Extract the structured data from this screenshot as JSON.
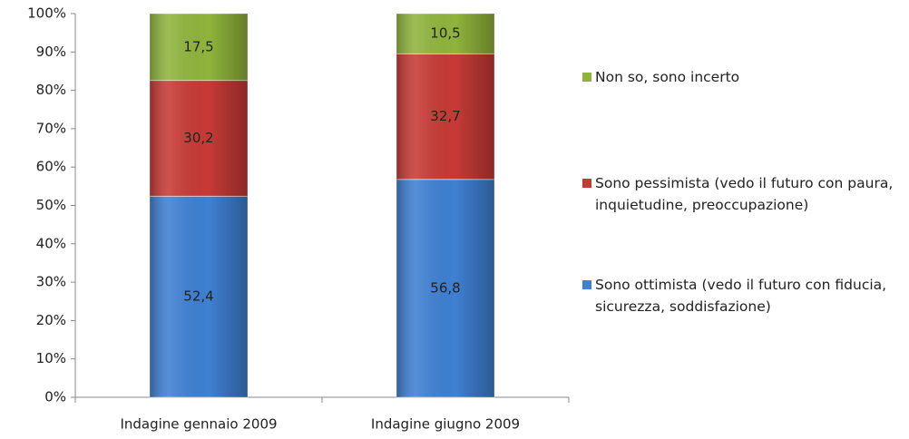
{
  "chart_data": {
    "type": "stacked_bar",
    "categories": [
      "Indagine gennaio 2009",
      "Indagine giugno 2009"
    ],
    "series": [
      {
        "name": "Sono ottimista (vedo il futuro con fiducia, sicurezza, soddisfazione)",
        "color": "#3f80d2",
        "values": [
          52.4,
          56.8
        ],
        "value_labels": [
          "52,4",
          "56,8"
        ]
      },
      {
        "name": "Sono pessimista (vedo il futuro con paura, inquietudine, preoccupazione)",
        "color": "#c63a36",
        "values": [
          30.2,
          32.7
        ],
        "value_labels": [
          "30,2",
          "32,7"
        ]
      },
      {
        "name": "Non so, sono incerto",
        "color": "#8fb43c",
        "values": [
          17.5,
          10.5
        ],
        "value_labels": [
          "17,5",
          "10,5"
        ]
      }
    ],
    "ylim": [
      0,
      100
    ],
    "yticks": [
      {
        "value": 0,
        "label": "0%"
      },
      {
        "value": 10,
        "label": "10%"
      },
      {
        "value": 20,
        "label": "20%"
      },
      {
        "value": 30,
        "label": "30%"
      },
      {
        "value": 40,
        "label": "40%"
      },
      {
        "value": 50,
        "label": "50%"
      },
      {
        "value": 60,
        "label": "60%"
      },
      {
        "value": 70,
        "label": "70%"
      },
      {
        "value": 80,
        "label": "80%"
      },
      {
        "value": 90,
        "label": "90%"
      },
      {
        "value": 100,
        "label": "100%"
      }
    ],
    "legend": "right"
  }
}
